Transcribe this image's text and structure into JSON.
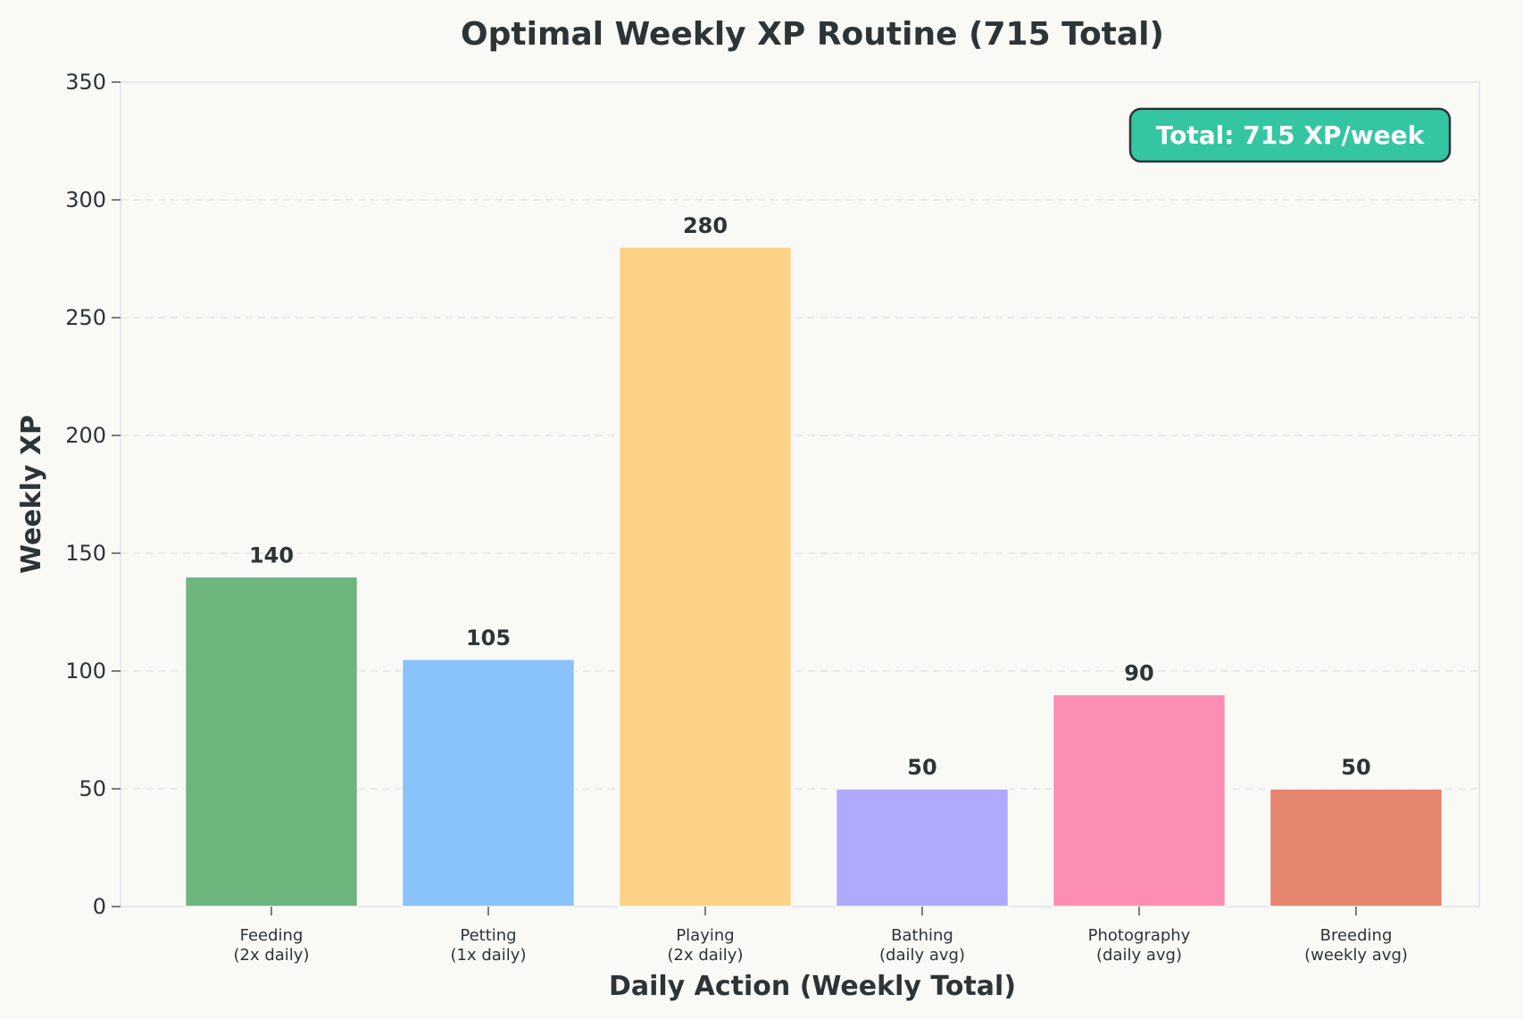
{
  "chart_data": {
    "type": "bar",
    "title": "Optimal Weekly XP Routine (715 Total)",
    "xlabel": "Daily Action (Weekly Total)",
    "ylabel": "Weekly XP",
    "categories": [
      [
        "Feeding",
        "(2x daily)"
      ],
      [
        "Petting",
        "(1x daily)"
      ],
      [
        "Playing",
        "(2x daily)"
      ],
      [
        "Bathing",
        "(daily avg)"
      ],
      [
        "Photography",
        "(daily avg)"
      ],
      [
        "Breeding",
        "(weekly avg)"
      ]
    ],
    "values": [
      140,
      105,
      280,
      50,
      90,
      50
    ],
    "data_labels": [
      "140",
      "105",
      "280",
      "50",
      "90",
      "50"
    ],
    "colors": [
      "#6fb57e",
      "#89c2fc",
      "#fcd286",
      "#afaafc",
      "#fc8db3",
      "#e5866e"
    ],
    "ylim": [
      0,
      350
    ],
    "yticks": [
      0,
      50,
      100,
      150,
      200,
      250,
      300,
      350
    ],
    "grid": true,
    "annotation": {
      "text": "Total: 715 XP/week",
      "position": "top-right",
      "background": "#34c6a3"
    }
  }
}
